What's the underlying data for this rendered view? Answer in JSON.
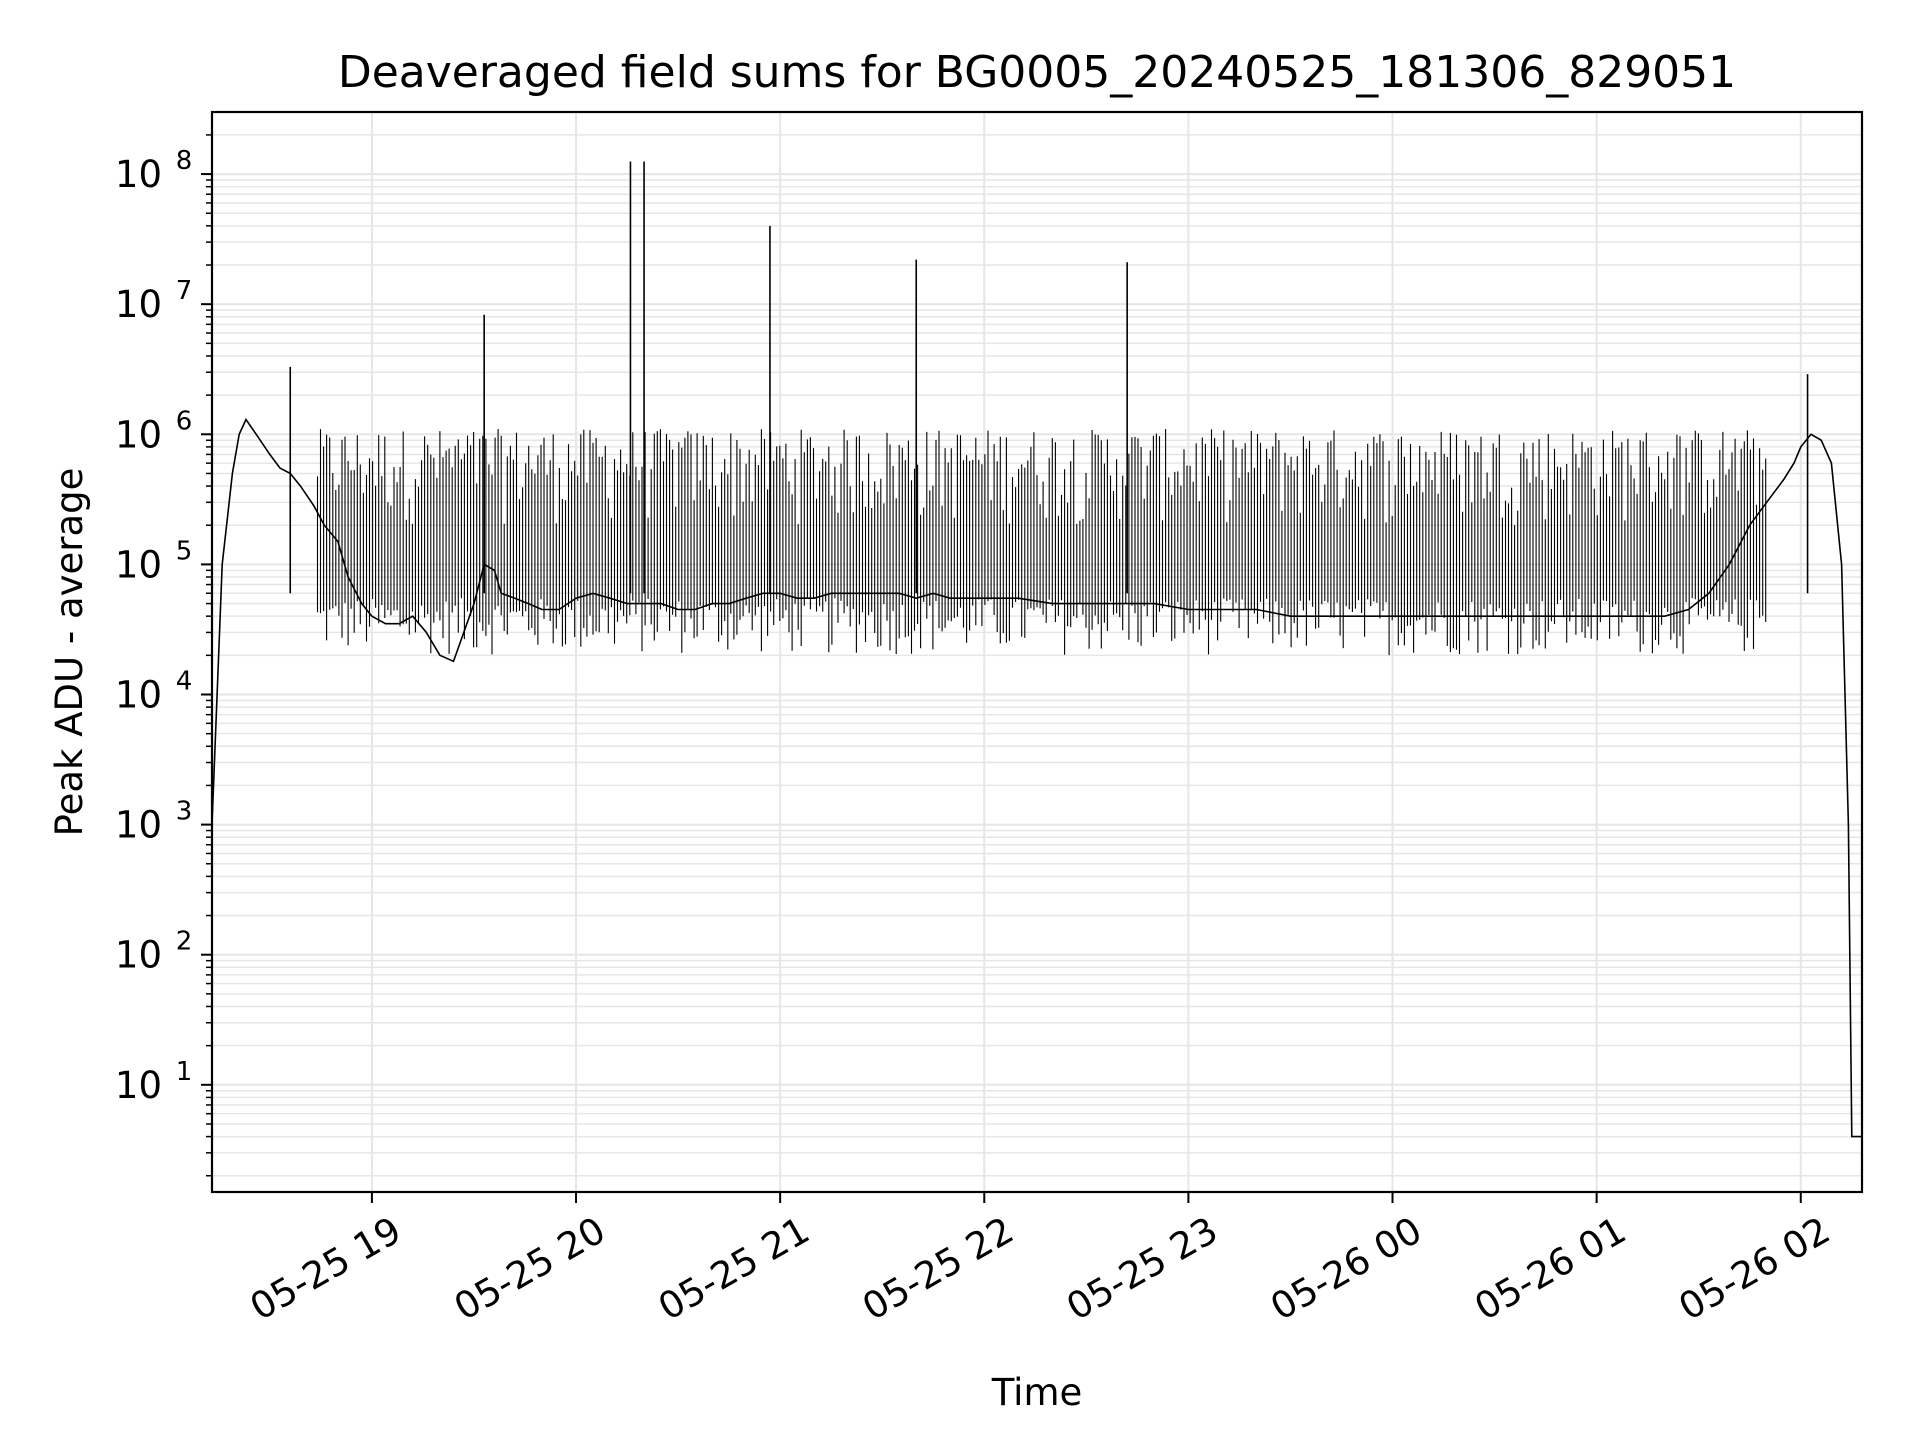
{
  "chart_data": {
    "type": "line",
    "title": "Deaveraged field sums for BG0005_20240525_181306_829051",
    "xlabel": "Time",
    "ylabel": "Peak ADU - average",
    "yscale": "log",
    "ylim": [
      1.5,
      300000000
    ],
    "xlim": [
      "05-25 18:13",
      "05-26 02:18"
    ],
    "grid": true,
    "legend": "none",
    "line_color": "#000000",
    "grid_color": "#e6e6e6",
    "x_ticks": [
      "05-25 19",
      "05-25 20",
      "05-25 21",
      "05-25 22",
      "05-25 23",
      "05-26 00",
      "05-26 01",
      "05-26 02"
    ],
    "y_ticks": [
      {
        "base": "10",
        "exp": "1",
        "value": 10
      },
      {
        "base": "10",
        "exp": "2",
        "value": 100
      },
      {
        "base": "10",
        "exp": "3",
        "value": 1000
      },
      {
        "base": "10",
        "exp": "4",
        "value": 10000
      },
      {
        "base": "10",
        "exp": "5",
        "value": 100000
      },
      {
        "base": "10",
        "exp": "6",
        "value": 1000000
      },
      {
        "base": "10",
        "exp": "7",
        "value": 10000000
      },
      {
        "base": "10",
        "exp": "8",
        "value": 100000000
      }
    ],
    "series": [
      {
        "x": [
          "05-25 18:13",
          "05-25 18:16",
          "05-25 18:19",
          "05-25 18:21",
          "05-25 18:23",
          "05-25 18:26",
          "05-25 18:30",
          "05-25 18:33",
          "05-25 18:36",
          "05-25 18:39",
          "05-25 18:43",
          "05-25 18:46",
          "05-25 18:50",
          "05-25 18:53",
          "05-25 18:57",
          "05-25 19:00",
          "05-25 19:04",
          "05-25 19:08",
          "05-25 19:12",
          "05-25 19:16",
          "05-25 19:20",
          "05-25 19:24",
          "05-25 19:27",
          "05-25 19:30",
          "05-25 19:33",
          "05-25 19:36",
          "05-25 19:38",
          "05-25 19:42",
          "05-25 19:46",
          "05-25 19:50",
          "05-25 19:55",
          "05-25 20:00",
          "05-25 20:05",
          "05-25 20:10",
          "05-25 20:15",
          "05-25 20:20",
          "05-25 20:25",
          "05-25 20:30",
          "05-25 20:35",
          "05-25 20:40",
          "05-25 20:45",
          "05-25 20:50",
          "05-25 20:55",
          "05-25 21:00",
          "05-25 21:05",
          "05-25 21:10",
          "05-25 21:15",
          "05-25 21:20",
          "05-25 21:25",
          "05-25 21:30",
          "05-25 21:35",
          "05-25 21:40",
          "05-25 21:45",
          "05-25 21:50",
          "05-25 22:00",
          "05-25 22:10",
          "05-25 22:20",
          "05-25 22:30",
          "05-25 22:40",
          "05-25 22:50",
          "05-25 23:00",
          "05-25 23:10",
          "05-25 23:20",
          "05-25 23:30",
          "05-25 23:40",
          "05-25 23:50",
          "05-26 00:00",
          "05-26 00:10",
          "05-26 00:20",
          "05-26 00:30",
          "05-26 00:40",
          "05-26 00:50",
          "05-26 01:00",
          "05-26 01:10",
          "05-26 01:20",
          "05-26 01:27",
          "05-26 01:33",
          "05-26 01:39",
          "05-26 01:45",
          "05-26 01:50",
          "05-26 01:55",
          "05-26 01:58",
          "05-26 02:00",
          "05-26 02:03",
          "05-26 02:06",
          "05-26 02:09",
          "05-26 02:12",
          "05-26 02:14",
          "05-26 02:15",
          "05-26 02:16",
          "05-26 02:18"
        ],
        "y": [
          1000,
          100000,
          500000,
          1000000,
          1300000,
          1000000,
          700000,
          550000,
          500000,
          400000,
          280000,
          200000,
          150000,
          80000,
          50000,
          40000,
          35000,
          35000,
          40000,
          30000,
          20000,
          18000,
          30000,
          50000,
          100000,
          90000,
          60000,
          55000,
          50000,
          45000,
          45000,
          55000,
          60000,
          55000,
          50000,
          50000,
          50000,
          45000,
          45000,
          50000,
          50000,
          55000,
          60000,
          60000,
          55000,
          55000,
          60000,
          60000,
          60000,
          60000,
          60000,
          55000,
          60000,
          55000,
          55000,
          55000,
          50000,
          50000,
          50000,
          50000,
          45000,
          45000,
          45000,
          40000,
          40000,
          40000,
          40000,
          40000,
          40000,
          40000,
          40000,
          40000,
          40000,
          40000,
          40000,
          45000,
          60000,
          100000,
          200000,
          300000,
          450000,
          600000,
          800000,
          1000000,
          900000,
          600000,
          100000,
          1000,
          4,
          4,
          4
        ]
      }
    ],
    "annotations_peaks": [
      {
        "x": "05-25 18:36",
        "y": 3300000
      },
      {
        "x": "05-25 19:33",
        "y": 8300000
      },
      {
        "x": "05-25 20:16",
        "y": 125000000
      },
      {
        "x": "05-25 20:20",
        "y": 125000000
      },
      {
        "x": "05-25 20:57",
        "y": 40000000
      },
      {
        "x": "05-25 21:40",
        "y": 22000000
      },
      {
        "x": "05-25 22:42",
        "y": 21000000
      },
      {
        "x": "05-26 02:02",
        "y": 2900000
      }
    ]
  }
}
